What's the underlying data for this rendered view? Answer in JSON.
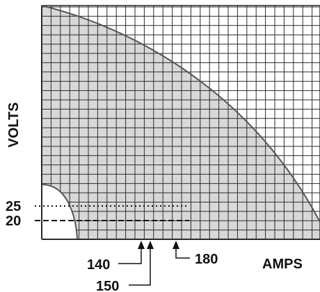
{
  "chart_data": {
    "type": "area",
    "xlabel": "AMPS",
    "ylabel": "VOLTS",
    "grid": true,
    "colors": {
      "fill": "#d7d8da",
      "curve": "#555555",
      "grid": "#2a2a2a",
      "text": "#111111"
    },
    "y_markers": [
      {
        "label": "25",
        "style": "dotted"
      },
      {
        "label": "20",
        "style": "dashed"
      }
    ],
    "x_markers": [
      {
        "label": "140"
      },
      {
        "label": "150"
      },
      {
        "label": "180"
      }
    ]
  }
}
